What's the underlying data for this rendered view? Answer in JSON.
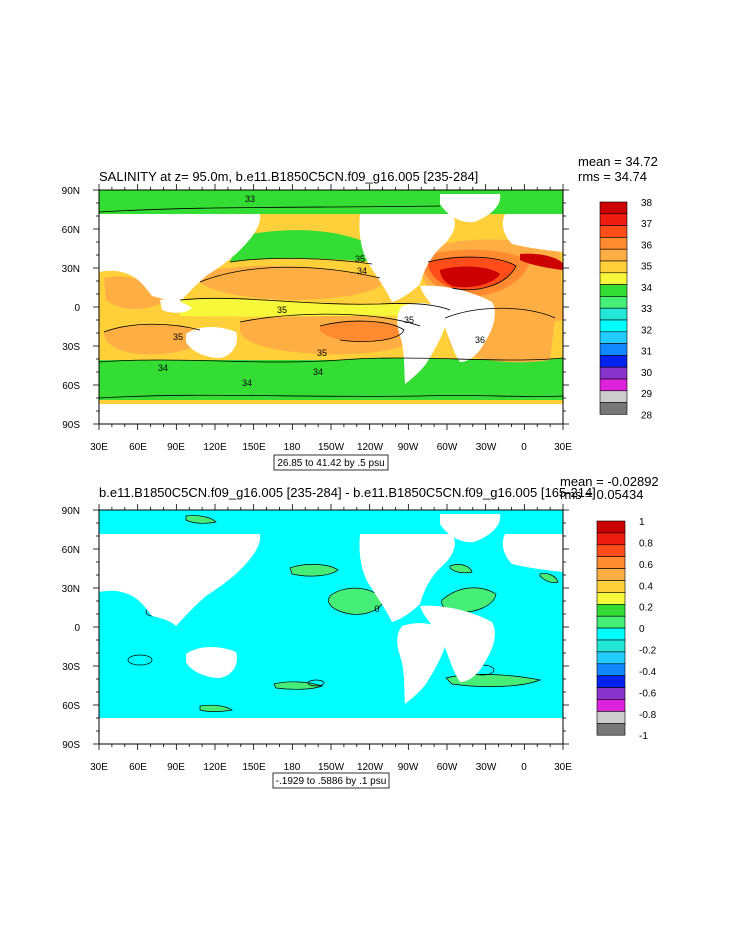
{
  "panels": [
    {
      "title": "SALINITY at z=  95.0m, b.e11.B1850C5CN.f09_g16.005 [235-284]",
      "stats": [
        "mean = 34.72",
        "rms = 34.74"
      ],
      "contour_info": "26.85 to 41.42 by .5 psu",
      "contour_labels": [
        "33",
        "35",
        "35",
        "35",
        "35",
        "35",
        "36",
        "34",
        "34",
        "34",
        "34"
      ],
      "colorbar": {
        "labels": [
          "38",
          "37",
          "36",
          "35",
          "34",
          "33",
          "32",
          "31",
          "30",
          "29",
          "28"
        ],
        "colors": [
          "#cc0000",
          "#ee1c10",
          "#ff4d1a",
          "#ff8a30",
          "#ffae44",
          "#ffd03a",
          "#f8f83a",
          "#33dd33",
          "#44ee77",
          "#22e6d6",
          "#00ffff",
          "#22ccff",
          "#1188ff",
          "#0022ee",
          "#8833cc",
          "#dd22dd",
          "#cccccc",
          "#777777"
        ]
      }
    },
    {
      "title": "b.e11.B1850C5CN.f09_g16.005 [235-284] - b.e11.B1850C5CN.f09_g16.005 [165-214]",
      "stats": [
        "mean = -0.02892",
        "rms = 0.05434"
      ],
      "contour_info": "-.1929 to .5886 by .1 psu",
      "contour_labels": [
        "0"
      ],
      "colorbar": {
        "labels": [
          "1",
          "0.8",
          "0.6",
          "0.4",
          "0.2",
          "0",
          "-0.2",
          "-0.4",
          "-0.6",
          "-0.8",
          "-1"
        ],
        "colors": [
          "#cc0000",
          "#ee1c10",
          "#ff4d1a",
          "#ff8a30",
          "#ffae44",
          "#ffd03a",
          "#f8f83a",
          "#33dd33",
          "#44ee77",
          "#00ffff",
          "#22e6d6",
          "#22ccff",
          "#1188ff",
          "#0022ee",
          "#8833cc",
          "#dd22dd",
          "#cccccc",
          "#777777"
        ]
      }
    }
  ],
  "axes": {
    "lat_labels": [
      "90N",
      "60N",
      "30N",
      "0",
      "30S",
      "60S",
      "90S"
    ],
    "lon_labels": [
      "30E",
      "60E",
      "90E",
      "120E",
      "150E",
      "180",
      "150W",
      "120W",
      "90W",
      "60W",
      "30W",
      "0",
      "30E"
    ]
  },
  "colors": {
    "land": "#ffffff",
    "sal_33": "#33dd33",
    "sal_34": "#f8f83a",
    "sal_345": "#ffd03a",
    "sal_35": "#ffae44",
    "sal_355": "#ff8a30",
    "sal_36": "#ff4d1a",
    "sal_37": "#cc0000",
    "diff_zero": "#00ffff",
    "diff_pos": "#44ee77"
  }
}
